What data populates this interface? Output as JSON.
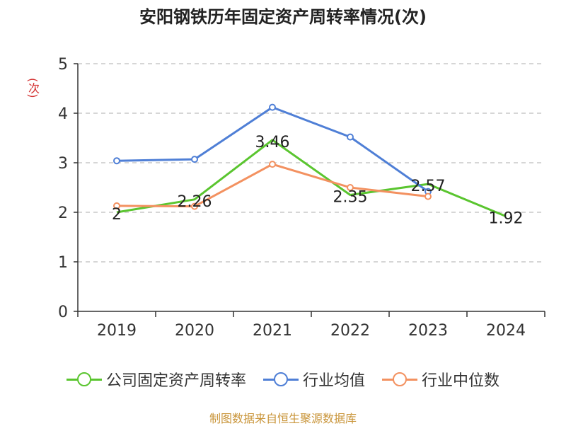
{
  "title": "安阳钢铁历年固定资产周转率情况(次)",
  "footer": "制图数据来自恒生聚源数据库",
  "chart_data": {
    "type": "line",
    "title": "安阳钢铁历年固定资产周转率情况(次)",
    "ylabel": "(次)",
    "xlabel": "",
    "categories": [
      "2019",
      "2020",
      "2021",
      "2022",
      "2023",
      "2024"
    ],
    "ylim": [
      0,
      5
    ],
    "yticks": [
      0,
      1,
      2,
      3,
      4,
      5
    ],
    "grid": true,
    "legend_position": "bottom",
    "series": [
      {
        "name": "公司固定资产周转率",
        "color": "#5ac52f",
        "values": [
          2,
          2.26,
          3.46,
          2.35,
          2.57,
          1.92
        ],
        "labels": [
          "2",
          "2.26",
          "3.46",
          "2.35",
          "2.57",
          "1.92"
        ]
      },
      {
        "name": "行业均值",
        "color": "#4f7fd6",
        "values": [
          3.04,
          3.07,
          4.12,
          3.52,
          2.42,
          null
        ]
      },
      {
        "name": "行业中位数",
        "color": "#f39160",
        "values": [
          2.13,
          2.12,
          2.97,
          2.5,
          2.32,
          null
        ]
      }
    ]
  }
}
